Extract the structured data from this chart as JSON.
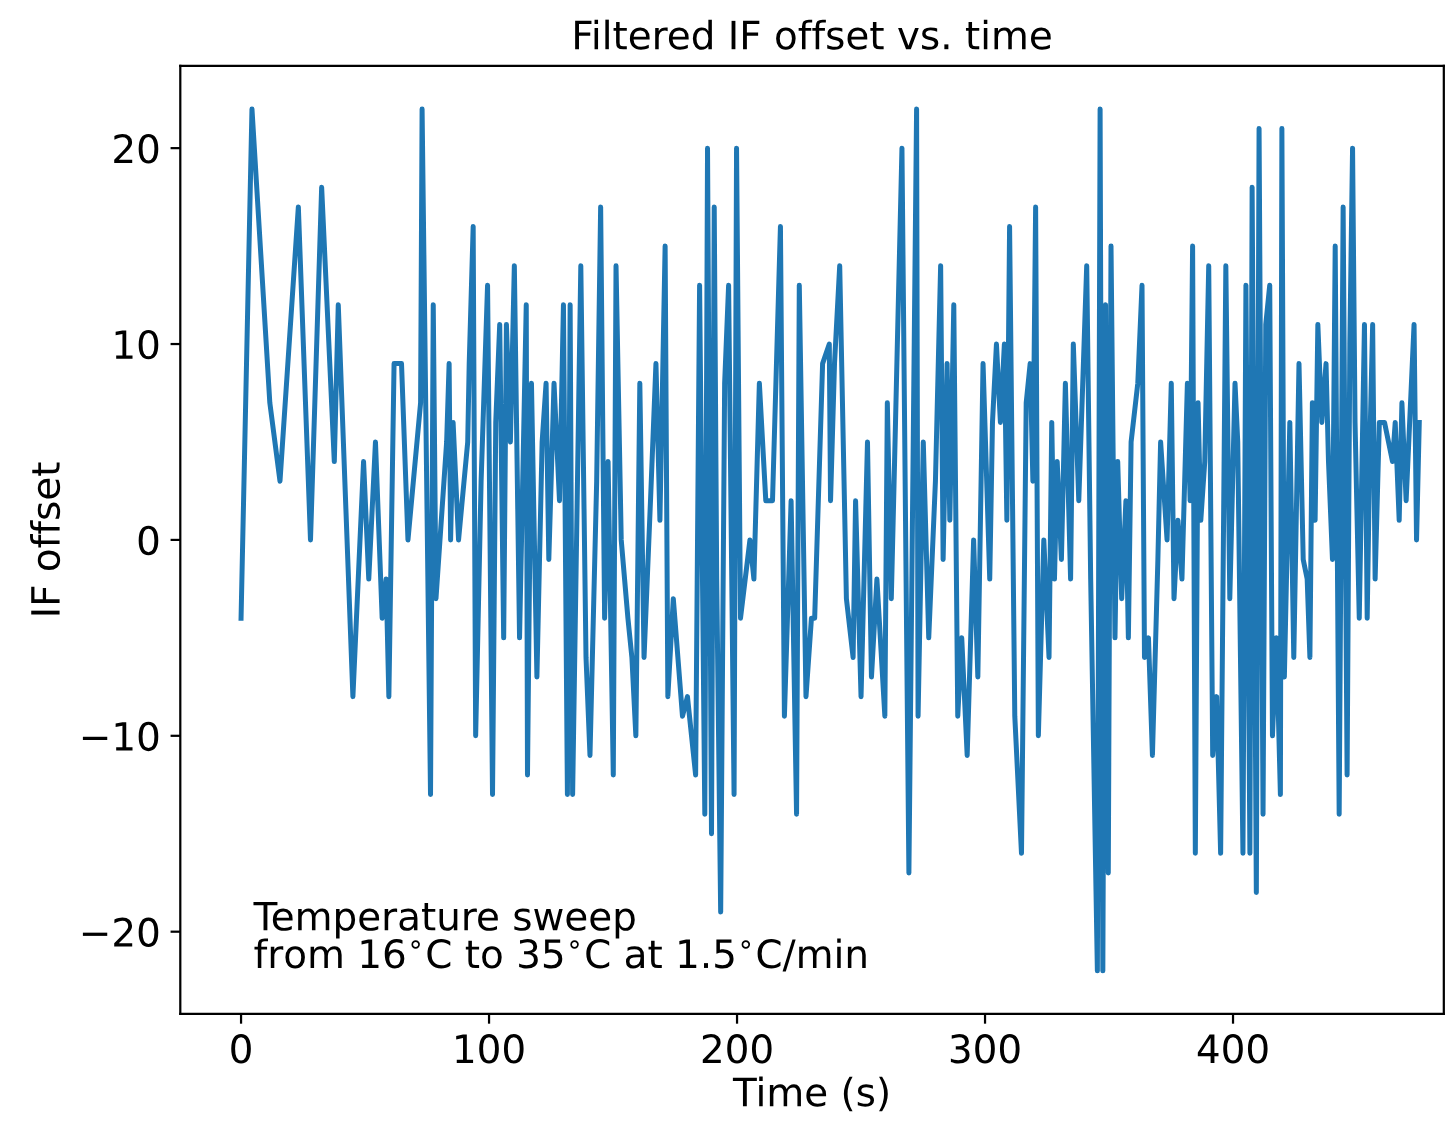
{
  "chart_data": {
    "type": "line",
    "title": "Filtered IF offset vs. time",
    "xlabel": "Time (s)",
    "ylabel": "IF offset",
    "annotations": [
      "Temperature sweep\nfrom 16$^{∘}$C to 35$^{∘}$C at 1.5$^{∘}$C/min"
    ],
    "xlim": [
      -24.5,
      485
    ],
    "ylim": [
      -24.2,
      24.2
    ],
    "xticks": [
      0,
      100,
      200,
      300,
      400
    ],
    "yticks": [
      {
        "value": -20,
        "label": "−20"
      },
      {
        "value": -10,
        "label": "−10"
      },
      0,
      10,
      20
    ],
    "grid": false,
    "legend": false,
    "marker": "none",
    "line_style": "solid",
    "series": [
      {
        "color": "#1f77b4",
        "x": [
          0,
          4.4,
          11.6,
          15.7,
          23.1,
          28,
          32.5,
          37.6,
          39.2,
          45.1,
          49.4,
          51.5,
          54.2,
          56.9,
          58.5,
          59.6,
          61.7,
          64.7,
          67.3,
          72.4,
          73,
          76.4,
          77.5,
          78.6,
          82.9,
          83.9,
          84.5,
          85.5,
          87.7,
          91.4,
          92,
          93.6,
          94.6,
          96.8,
          99.4,
          101.4,
          102.7,
          104.3,
          105.9,
          107,
          108.6,
          110.2,
          112.3,
          115,
          115.5,
          117.1,
          119.3,
          121.4,
          123,
          124.1,
          126.2,
          128.4,
          130,
          131.6,
          132.7,
          133.7,
          137,
          139.1,
          140.7,
          143.4,
          145,
          146.6,
          148,
          150.1,
          151.2,
          153.3,
          156,
          157.6,
          159.2,
          160.8,
          162.5,
          165.1,
          167.3,
          168.9,
          171,
          172.1,
          174.3,
          178,
          180,
          183.3,
          184.9,
          187,
          188.1,
          189.7,
          190.8,
          191.8,
          193.4,
          195,
          196.6,
          198.8,
          199.8,
          201.4,
          205.2,
          206.8,
          209,
          211.6,
          214.3,
          217.5,
          219.1,
          221.8,
          224,
          225.1,
          227.8,
          230,
          231.3,
          234.5,
          237.2,
          237.7,
          239.3,
          241.4,
          244.1,
          246.8,
          247.8,
          250,
          252.6,
          254.2,
          256.4,
          259.6,
          260.6,
          262.2,
          263.9,
          266.5,
          269.3,
          272.4,
          273,
          275.1,
          277.3,
          280,
          282.1,
          283.1,
          284.7,
          285.8,
          287.4,
          289,
          290.6,
          292.8,
          295.4,
          297.1,
          299.2,
          301.9,
          303,
          304.6,
          306.2,
          307.8,
          308.8,
          309.9,
          312,
          314.7,
          316.6,
          318.2,
          319.3,
          320.4,
          321.5,
          323.7,
          325.8,
          326.9,
          328,
          329.1,
          330.8,
          332.4,
          334.5,
          335.6,
          337.8,
          341,
          342.6,
          345.3,
          346.4,
          347.5,
          348.6,
          349.7,
          350.8,
          352.4,
          353.5,
          355.1,
          356.8,
          357.8,
          358.9,
          361.6,
          363.3,
          364.3,
          365.9,
          367.5,
          369.7,
          370.8,
          373.4,
          375.1,
          376.2,
          377.8,
          379.4,
          381.6,
          382.7,
          383.7,
          384.8,
          385.9,
          387,
          388.6,
          390.2,
          391.8,
          393.4,
          395,
          397.1,
          398.7,
          400.8,
          401.9,
          404,
          405.2,
          406.8,
          407.7,
          409.4,
          410.5,
          412.1,
          413.2,
          414.8,
          415.9,
          417.5,
          419.1,
          419.7,
          420.7,
          422.9,
          424.5,
          426.6,
          428.3,
          429.9,
          431,
          432,
          433.1,
          434.2,
          435.8,
          437.5,
          438.5,
          440.1,
          441.2,
          442.8,
          444.4,
          446,
          447.1,
          448.2,
          449.2,
          450.9,
          453,
          454.1,
          455.2,
          456.3,
          457.3,
          459,
          461.1,
          462.7,
          464.3,
          465.4,
          467,
          468.1,
          469.8,
          473,
          474,
          475.1
        ],
        "values": [
          -4,
          22,
          7,
          3,
          17,
          0,
          18,
          4,
          12,
          -8,
          4,
          -2,
          5,
          -4,
          -2,
          -8,
          9,
          9,
          0,
          7,
          22,
          -13,
          12,
          -3,
          5,
          9,
          0,
          6,
          0,
          5,
          9,
          16,
          -10,
          3,
          13,
          -13,
          6,
          11,
          -5,
          11,
          5,
          14,
          -5,
          12,
          -12,
          8,
          -7,
          5,
          8,
          -1,
          8,
          2,
          12,
          -13,
          12,
          -13,
          14,
          -6,
          -11,
          3,
          17,
          -4,
          4,
          -12,
          14,
          0,
          -4,
          -6,
          -10,
          8,
          -6,
          2,
          9,
          1,
          15,
          -8,
          -3,
          -9,
          -8,
          -12,
          13,
          -14,
          20,
          -15,
          17,
          -2,
          -19,
          8,
          13,
          -13,
          20,
          -4,
          0,
          -2,
          8,
          2,
          2,
          16,
          -9,
          2,
          -14,
          13,
          -8,
          -4,
          -4,
          9,
          10,
          2,
          9,
          14,
          -3,
          -6,
          2,
          -8,
          5,
          -7,
          -2,
          -9,
          7,
          -3,
          6,
          20,
          -17,
          22,
          -9,
          5,
          -5,
          3,
          14,
          -1,
          9,
          1,
          12,
          -9,
          -5,
          -11,
          0,
          -7,
          9,
          -2,
          6,
          10,
          6,
          10,
          1,
          16,
          -9,
          -16,
          7,
          9,
          3,
          17,
          -10,
          0,
          -6,
          6,
          -2,
          4,
          -1,
          8,
          -2,
          10,
          2,
          14,
          -2,
          -22,
          22,
          -22,
          12,
          -17,
          15,
          -5,
          4,
          -3,
          2,
          -5,
          5,
          8,
          13,
          -6,
          -5,
          -11,
          -1,
          5,
          0,
          8,
          -3,
          1,
          -2,
          8,
          2,
          15,
          -16,
          7,
          1,
          4,
          14,
          -11,
          -8,
          -16,
          14,
          -3,
          8,
          5,
          -16,
          13,
          -16,
          18,
          -18,
          21,
          -14,
          11,
          13,
          -10,
          -5,
          -13,
          21,
          -7,
          6,
          -6,
          9,
          -1,
          -2,
          -6,
          7,
          1,
          11,
          6,
          9,
          4,
          -1,
          15,
          -14,
          17,
          -12,
          10,
          20,
          6,
          -4,
          11,
          -4,
          5,
          11,
          -2,
          6,
          6,
          5,
          4,
          6,
          1,
          7,
          2,
          11,
          0,
          6
        ]
      }
    ]
  }
}
